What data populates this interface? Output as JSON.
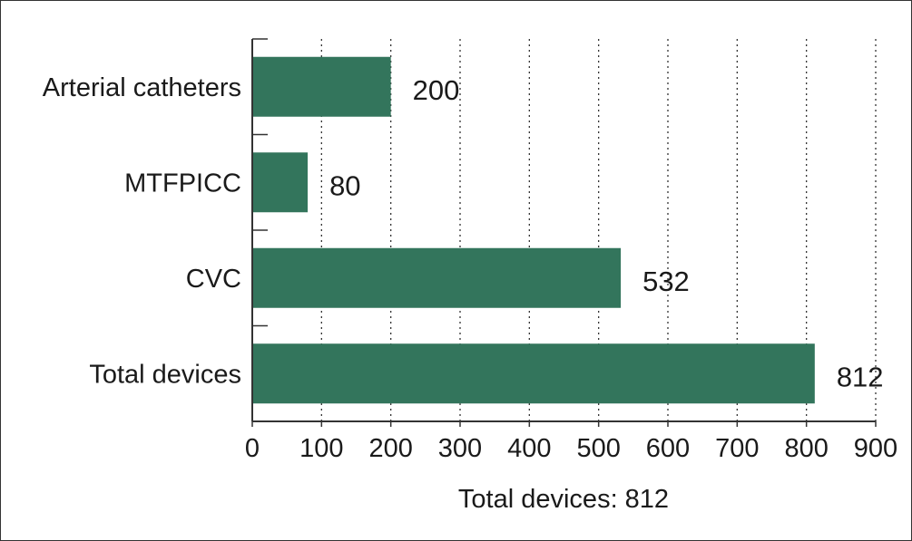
{
  "chart_data": {
    "type": "bar",
    "orientation": "horizontal",
    "categories": [
      "Arterial catheters",
      "MTFPICC",
      "CVC",
      "Total devices"
    ],
    "values": [
      200,
      80,
      532,
      812
    ],
    "data_labels": [
      "200",
      "80",
      "532",
      "812"
    ],
    "xlabel": "Total devices: 812",
    "ylabel": "",
    "xlim": [
      0,
      900
    ],
    "xticks": [
      "0",
      "100",
      "200",
      "300",
      "400",
      "500",
      "600",
      "700",
      "800",
      "900"
    ],
    "grid": "vertical dotted",
    "legend": "none",
    "bar_color": "#33755c"
  }
}
